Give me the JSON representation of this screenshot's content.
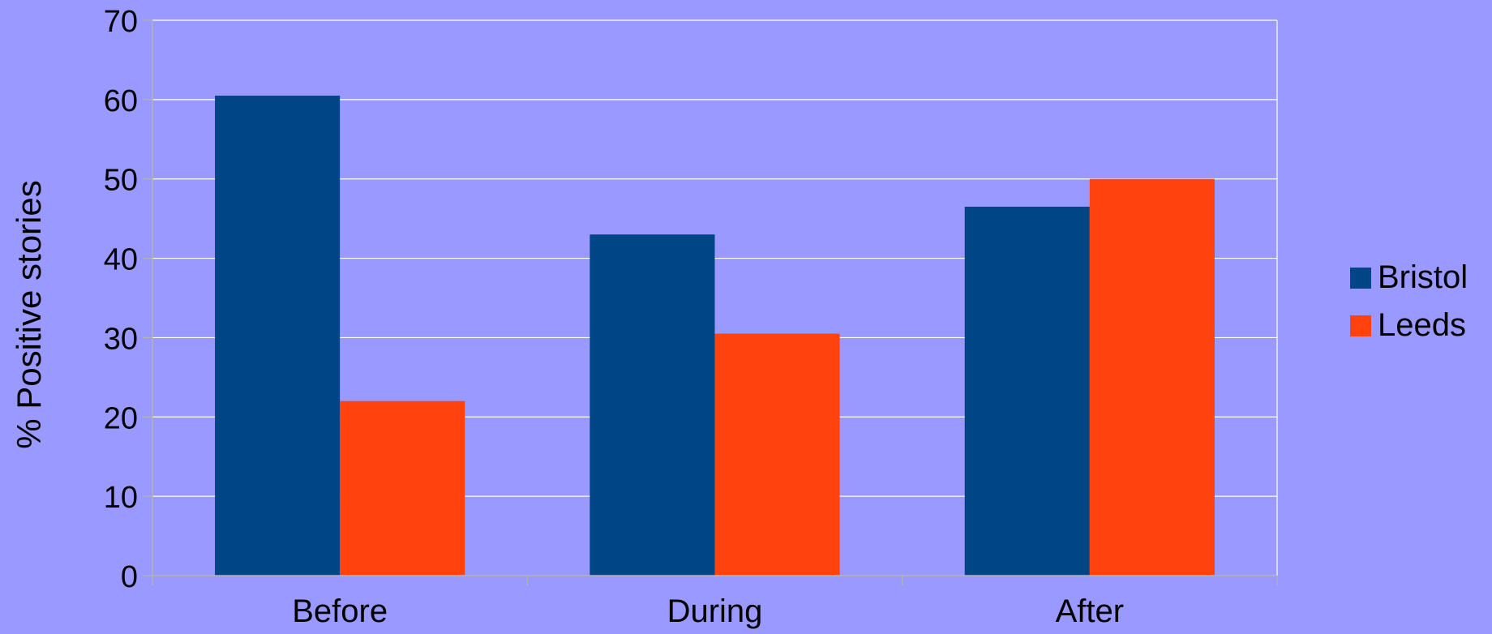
{
  "chart_data": {
    "type": "bar",
    "title": "",
    "xlabel": "",
    "ylabel": "% Positive stories",
    "categories": [
      "Before",
      "During",
      "After"
    ],
    "series": [
      {
        "name": "Bristol",
        "values": [
          60.5,
          43,
          46.5
        ],
        "color": "#004586"
      },
      {
        "name": "Leeds",
        "values": [
          22,
          30.5,
          50
        ],
        "color": "#ff420e"
      }
    ],
    "ylim": [
      0,
      70
    ],
    "yticks": [
      0,
      10,
      20,
      30,
      40,
      50,
      60,
      70
    ],
    "grid": true,
    "legend_position": "right",
    "colors": {
      "background": "#9999ff",
      "gridline": "#ffffff",
      "axis": "#b3b3b3"
    }
  }
}
